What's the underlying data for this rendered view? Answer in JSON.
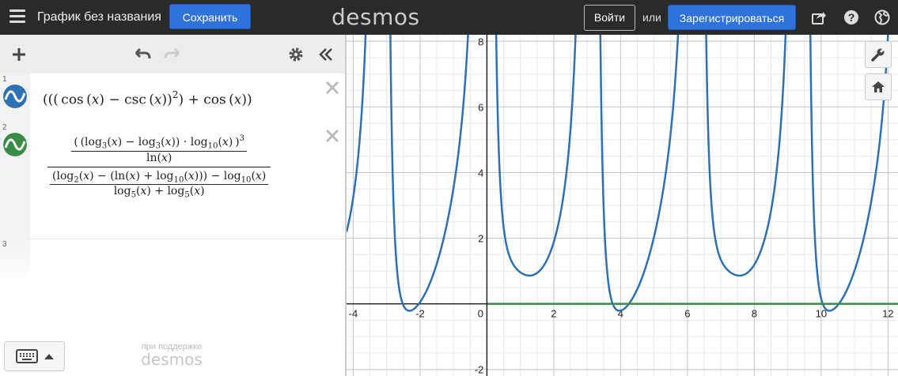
{
  "topbar": {
    "title": "График без названия",
    "save_label": "Сохранить",
    "logo": "desmos",
    "login_label": "Войти",
    "or_label": "или",
    "signup_label": "Зарегистрироваться"
  },
  "expressions": [
    {
      "index": "1",
      "color": "#2d70b3"
    },
    {
      "index": "2",
      "color": "#388c46"
    },
    {
      "index": "3"
    }
  ],
  "footer": {
    "powered_by": "при поддержке",
    "logo": "desmos"
  },
  "colors": {
    "topbar": "#2a2a2a",
    "accent": "#2f72dc",
    "curve_blue": "#2d70b3",
    "curve_green": "#388c46"
  },
  "graph": {
    "xlim": [
      -4.2,
      12.3
    ],
    "ylim": [
      -2.2,
      8.2
    ],
    "x_ticks": [
      "-4",
      "-2",
      "0",
      "2",
      "4",
      "6",
      "8",
      "10",
      "12"
    ],
    "y_ticks": [
      "8",
      "6",
      "4",
      "2",
      "-2"
    ]
  },
  "chart_data": {
    "type": "line",
    "series": [
      {
        "expression": "(((cos(x) - csc(x))^2) + cos(x))",
        "color": "#2d70b3"
      },
      {
        "expression": "log ratio expression (≈ 0)",
        "color": "#388c46"
      }
    ],
    "xlim": [
      -4.2,
      12.3
    ],
    "ylim": [
      -2.2,
      8.2
    ],
    "grid": true
  }
}
